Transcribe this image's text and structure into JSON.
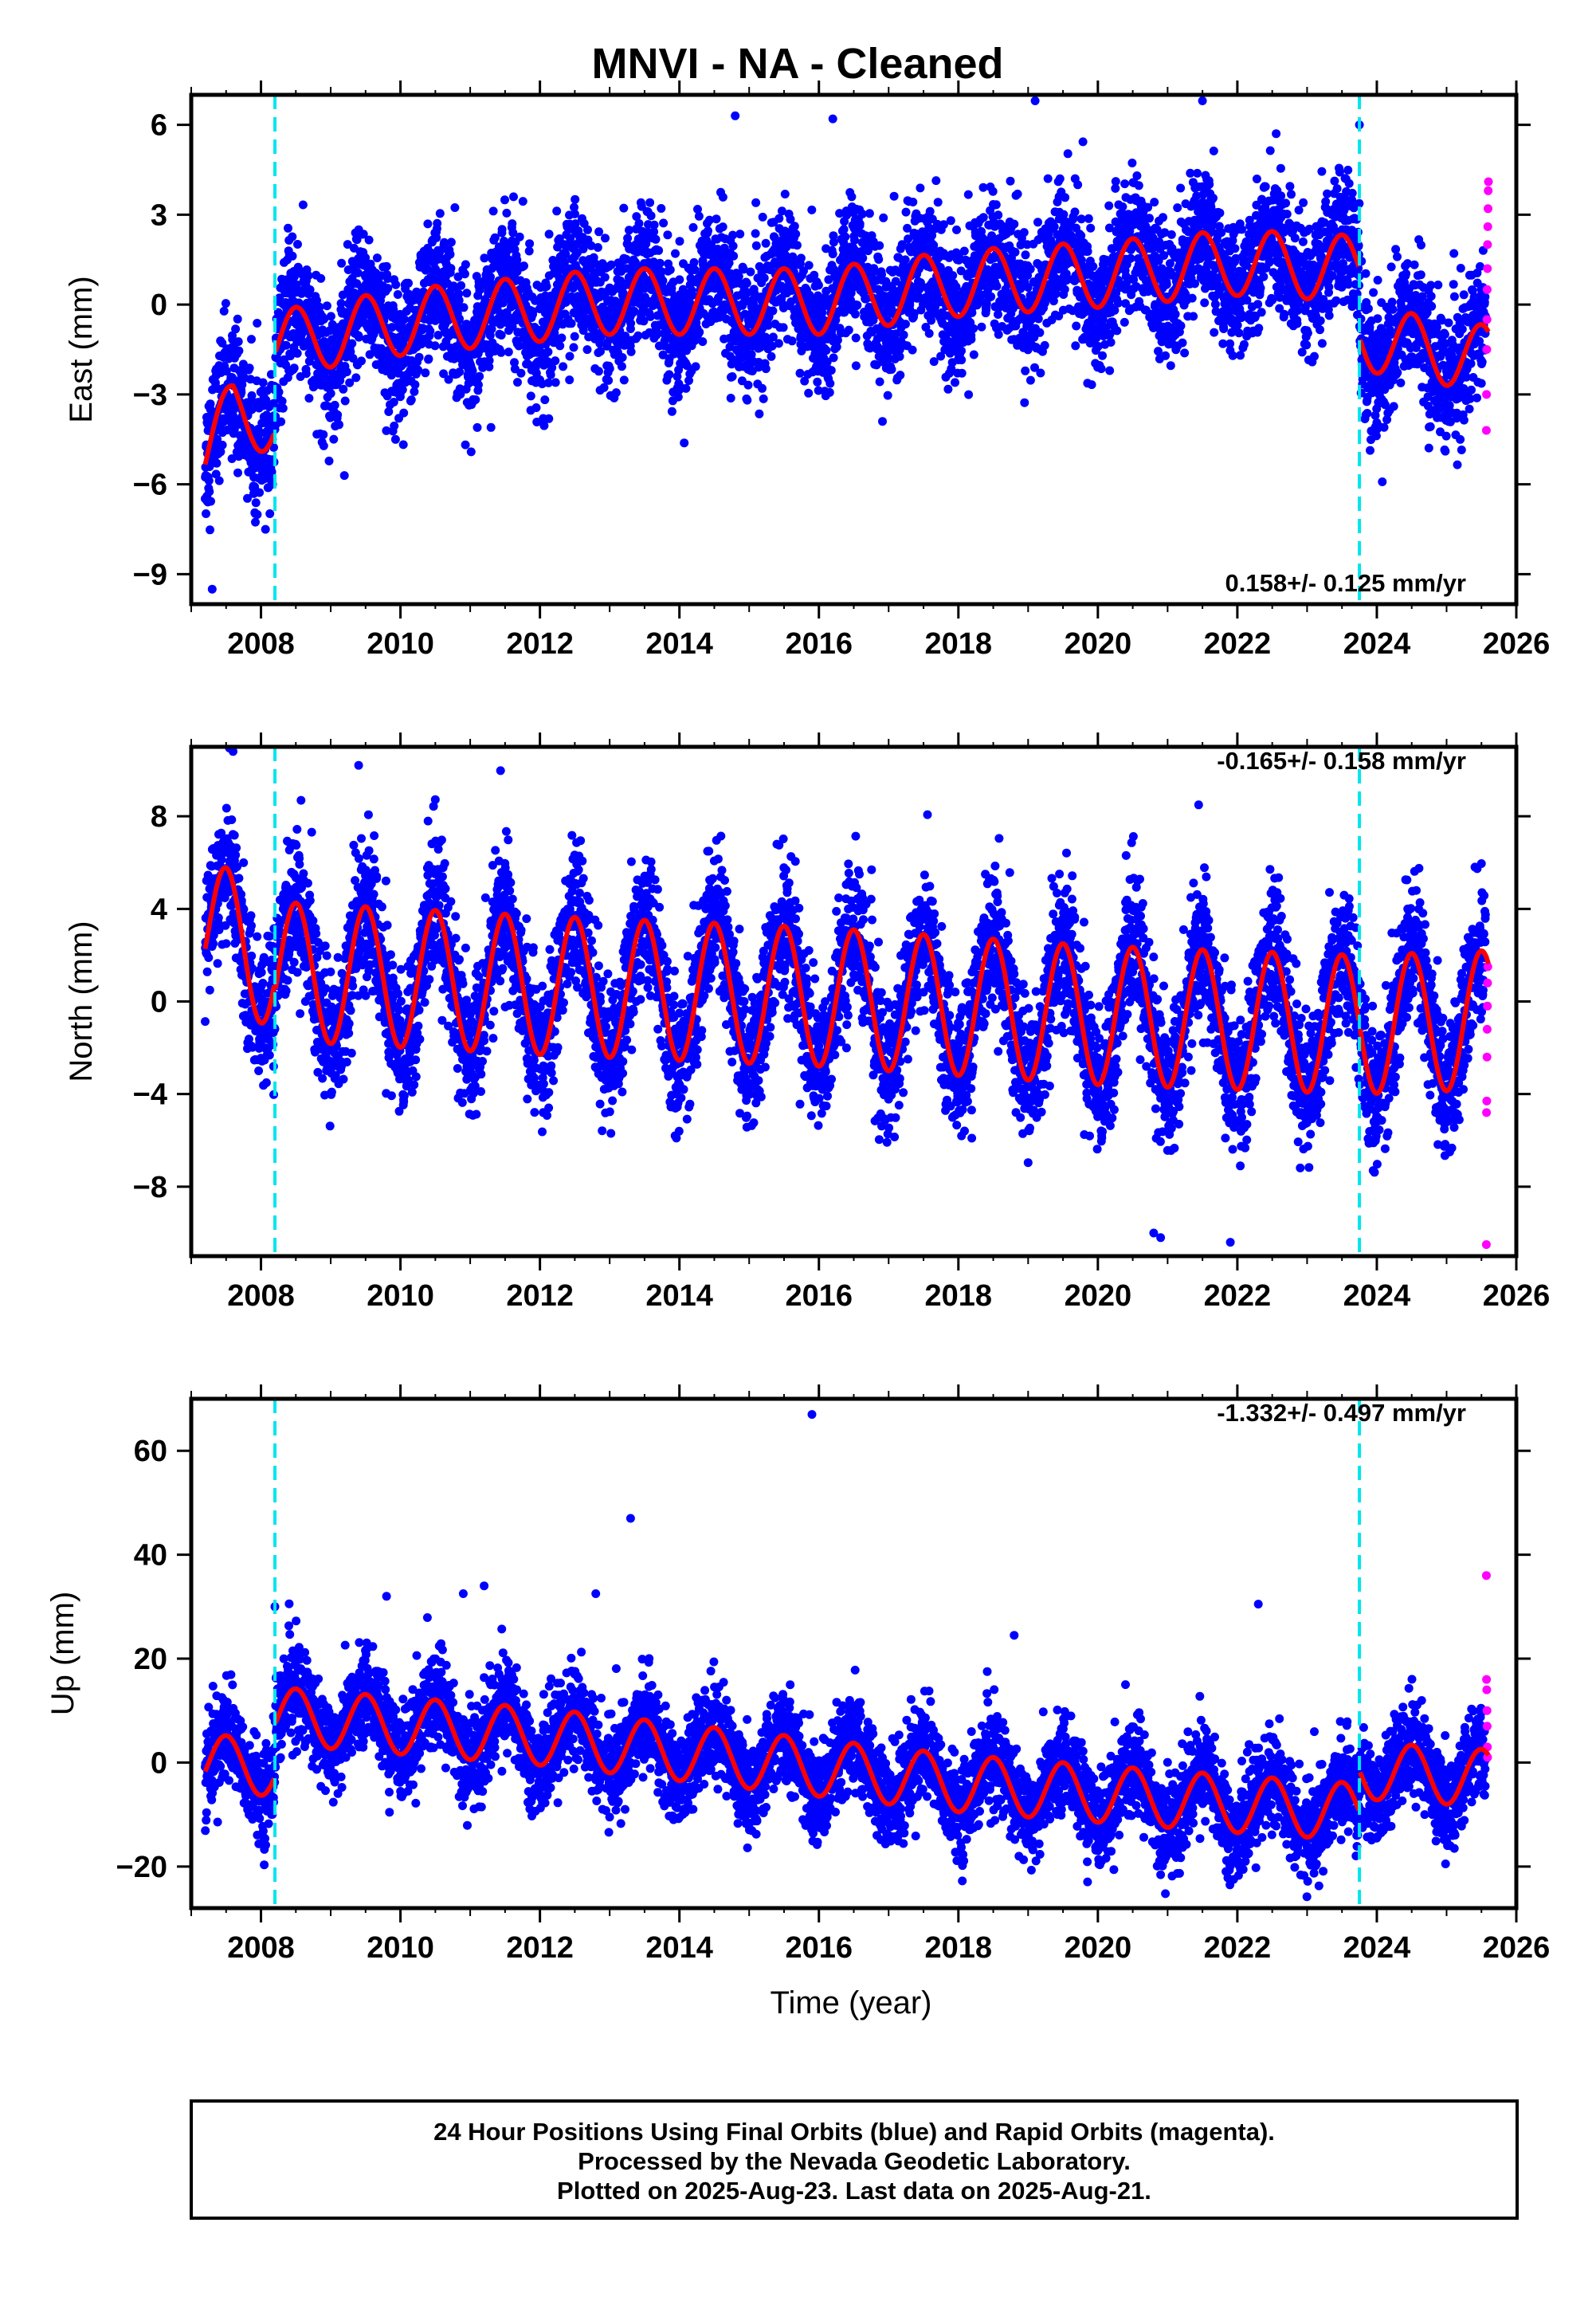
{
  "title": "MNVI  - NA - Cleaned",
  "xlabel": "Time (year)",
  "colors": {
    "final_orbits": "#0000ff",
    "rapid_orbits": "#ff00ff",
    "model_fit": "#ff0000",
    "equipment_change": "#00e5ee",
    "frame": "#000000"
  },
  "footer": {
    "line1": "24 Hour Positions Using Final Orbits (blue) and Rapid Orbits (magenta).",
    "line2": "Processed by the Nevada Geodetic Laboratory.",
    "line3": "Plotted on 2025-Aug-23. Last data on 2025-Aug-21."
  },
  "chart_data": [
    {
      "type": "scatter",
      "component": "east",
      "ylabel": "East (mm)",
      "rate_label": "0.158+/- 0.125 mm/yr",
      "xlim": [
        2007.0,
        2026.0
      ],
      "ylim": [
        -10.0,
        7.0
      ],
      "x_ticks": [
        2008,
        2010,
        2012,
        2014,
        2016,
        2018,
        2020,
        2022,
        2024,
        2026
      ],
      "y_ticks": [
        -9,
        -6,
        -3,
        0,
        3,
        6
      ],
      "rate_mm_per_yr": 0.158,
      "annual_amplitude_mm": 1.1,
      "scatter_sd_mm": 1.1,
      "discontinuities": [
        2008.2,
        2023.75
      ],
      "fit_anchors": {
        "x": [
          2007.2,
          2007.6,
          2008.19,
          2008.21,
          2010.0,
          2013.0,
          2016.0,
          2018.0,
          2020.0,
          2022.0,
          2023.74,
          2023.76,
          2025.0,
          2025.6
        ],
        "y": [
          -5.0,
          -3.6,
          -3.9,
          -1.3,
          -0.6,
          0.1,
          0.1,
          0.7,
          1.0,
          1.4,
          1.2,
          -1.1,
          -1.6,
          -1.8
        ]
      },
      "rapid_orbit_values": [
        -4.2,
        -3.0,
        -1.5,
        -0.5,
        0.5,
        1.2,
        2.0,
        2.6,
        3.2,
        3.8,
        4.1
      ],
      "outliers": [
        [
          2014.8,
          6.3
        ],
        [
          2016.2,
          6.2
        ],
        [
          2019.1,
          6.8
        ],
        [
          2021.5,
          6.8
        ],
        [
          2023.75,
          6.0
        ],
        [
          2007.3,
          -9.5
        ]
      ]
    },
    {
      "type": "scatter",
      "component": "north",
      "ylabel": "North (mm)",
      "rate_label": "-0.165+/- 0.158 mm/yr",
      "xlim": [
        2007.0,
        2026.0
      ],
      "ylim": [
        -11.0,
        11.0
      ],
      "x_ticks": [
        2008,
        2010,
        2012,
        2014,
        2016,
        2018,
        2020,
        2022,
        2024,
        2026
      ],
      "y_ticks": [
        -8,
        -4,
        0,
        4,
        8
      ],
      "rate_mm_per_yr": -0.165,
      "annual_amplitude_mm": 3.0,
      "scatter_sd_mm": 1.5,
      "discontinuities": [
        2008.2,
        2023.75
      ],
      "fit_anchors": {
        "x": [
          2007.2,
          2008.19,
          2008.21,
          2012.0,
          2016.0,
          2020.0,
          2023.74,
          2023.76,
          2025.6
        ],
        "y": [
          3.2,
          1.8,
          1.3,
          0.7,
          0.2,
          -0.6,
          -1.0,
          -1.0,
          -0.8
        ]
      },
      "rapid_orbit_values": [
        -10.5,
        -4.8,
        -4.3,
        -2.4,
        -1.2,
        -0.2,
        0.8,
        1.5
      ],
      "outliers": [
        [
          2007.6,
          10.8
        ],
        [
          2009.4,
          10.2
        ],
        [
          2020.9,
          -10.2
        ],
        [
          2021.9,
          -10.4
        ],
        [
          2020.8,
          -10.0
        ]
      ]
    },
    {
      "type": "scatter",
      "component": "up",
      "ylabel": "Up (mm)",
      "rate_label": "-1.332+/- 0.497 mm/yr",
      "xlim": [
        2007.0,
        2026.0
      ],
      "ylim": [
        -28.0,
        70.0
      ],
      "x_ticks": [
        2008,
        2010,
        2012,
        2014,
        2016,
        2018,
        2020,
        2022,
        2024,
        2026
      ],
      "y_ticks": [
        -20,
        0,
        20,
        40,
        60
      ],
      "rate_mm_per_yr": -1.332,
      "annual_amplitude_mm": 5.5,
      "scatter_sd_mm": 4.5,
      "discontinuities": [
        2008.2,
        2023.75
      ],
      "fit_anchors": {
        "x": [
          2007.2,
          2008.19,
          2008.21,
          2012.0,
          2016.0,
          2018.0,
          2020.0,
          2022.0,
          2023.74,
          2023.76,
          2025.6
        ],
        "y": [
          0.0,
          -1.0,
          9.0,
          5.0,
          -1.0,
          -4.0,
          -6.0,
          -8.0,
          -9.5,
          -1.5,
          -3.0
        ]
      },
      "rapid_orbit_values": [
        36.0,
        16.0,
        14.0,
        10.0,
        7.0,
        3.0,
        1.0
      ],
      "outliers": [
        [
          2015.9,
          67.0
        ],
        [
          2013.3,
          47.0
        ],
        [
          2011.2,
          34.0
        ],
        [
          2009.8,
          32.0
        ],
        [
          2010.9,
          32.5
        ],
        [
          2012.8,
          32.5
        ],
        [
          2008.2,
          30.0
        ],
        [
          2022.3,
          30.5
        ],
        [
          2018.8,
          24.5
        ]
      ]
    }
  ]
}
